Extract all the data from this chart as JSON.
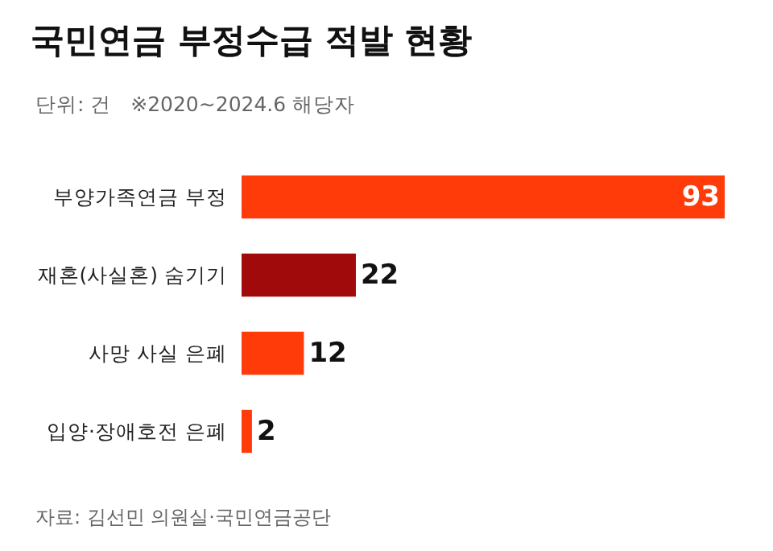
{
  "chart_data": {
    "type": "bar",
    "orientation": "horizontal",
    "title": "국민연금 부정수급 적발 현황",
    "subtitle": "단위: 건   ※2020~2024.6 해당자",
    "categories": [
      "부양가족연금 부정",
      "재혼(사실혼) 숨기기",
      "사망 사실 은폐",
      "입양·장애호전 은폐"
    ],
    "values": [
      93,
      22,
      12,
      2
    ],
    "colors": [
      "#ff3b0a",
      "#a00a0a",
      "#ff3b0a",
      "#ff3b0a"
    ],
    "data_labels": true,
    "annotations": [
      "자료: 김선민 의원실·국민연금공단"
    ]
  }
}
